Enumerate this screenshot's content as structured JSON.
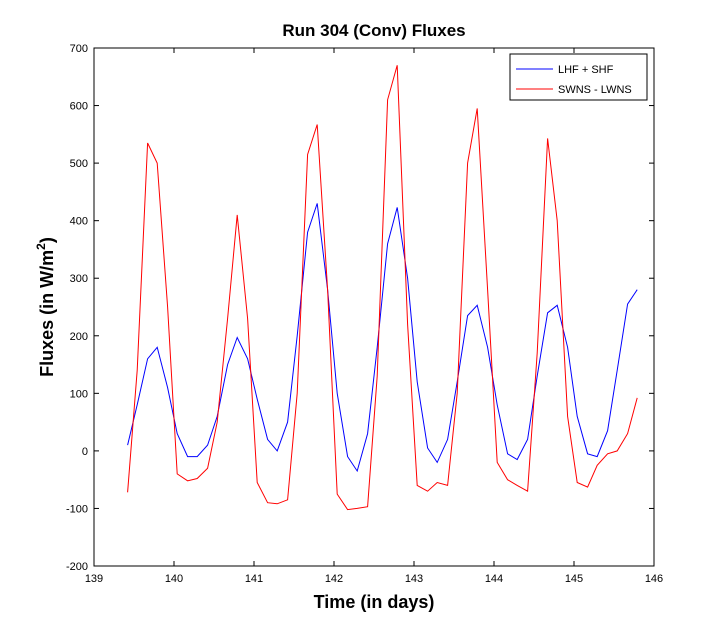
{
  "chart_data": {
    "type": "line",
    "title": "Run 304 (Conv) Fluxes",
    "xlabel": "Time (in days)",
    "ylabel": "Fluxes (in W/m",
    "ylabel_sup": "2",
    "ylabel_end": ")",
    "xlim": [
      139,
      146
    ],
    "ylim": [
      -200,
      700
    ],
    "xticks": [
      139,
      140,
      141,
      142,
      143,
      144,
      145,
      146
    ],
    "yticks": [
      -200,
      -100,
      0,
      100,
      200,
      300,
      400,
      500,
      600,
      700
    ],
    "grid": false,
    "legend_position": "top-right",
    "x": [
      139.42,
      139.54,
      139.67,
      139.79,
      139.92,
      140.04,
      140.17,
      140.29,
      140.42,
      140.54,
      140.67,
      140.79,
      140.92,
      141.04,
      141.17,
      141.29,
      141.42,
      141.54,
      141.67,
      141.79,
      141.92,
      142.04,
      142.17,
      142.29,
      142.42,
      142.54,
      142.67,
      142.79,
      142.92,
      143.04,
      143.17,
      143.29,
      143.42,
      143.54,
      143.67,
      143.79,
      143.92,
      144.04,
      144.17,
      144.29,
      144.42,
      144.54,
      144.67,
      144.79,
      144.92,
      145.04,
      145.17,
      145.29,
      145.42,
      145.54,
      145.67,
      145.79
    ],
    "series": [
      {
        "name": "LHF + SHF",
        "color": "#0000ff",
        "values": [
          10,
          80,
          160,
          180,
          110,
          30,
          -10,
          -10,
          10,
          60,
          150,
          197,
          160,
          90,
          20,
          0,
          50,
          200,
          380,
          430,
          280,
          100,
          -10,
          -35,
          30,
          180,
          360,
          423,
          300,
          120,
          5,
          -20,
          20,
          120,
          235,
          253,
          180,
          80,
          -5,
          -15,
          20,
          130,
          240,
          253,
          180,
          60,
          -5,
          -10,
          35,
          140,
          255,
          280
        ]
      },
      {
        "name": "SWNS - LWNS",
        "color": "#ff0000",
        "values": [
          -72,
          140,
          535,
          500,
          250,
          -40,
          -52,
          -48,
          -30,
          50,
          230,
          410,
          230,
          -55,
          -90,
          -92,
          -85,
          100,
          515,
          567,
          280,
          -75,
          -102,
          -100,
          -97,
          130,
          610,
          670,
          220,
          -60,
          -70,
          -55,
          -60,
          100,
          500,
          595,
          280,
          -20,
          -50,
          -60,
          -70,
          170,
          543,
          400,
          60,
          -55,
          -63,
          -25,
          -5,
          0,
          30,
          92
        ]
      }
    ]
  }
}
